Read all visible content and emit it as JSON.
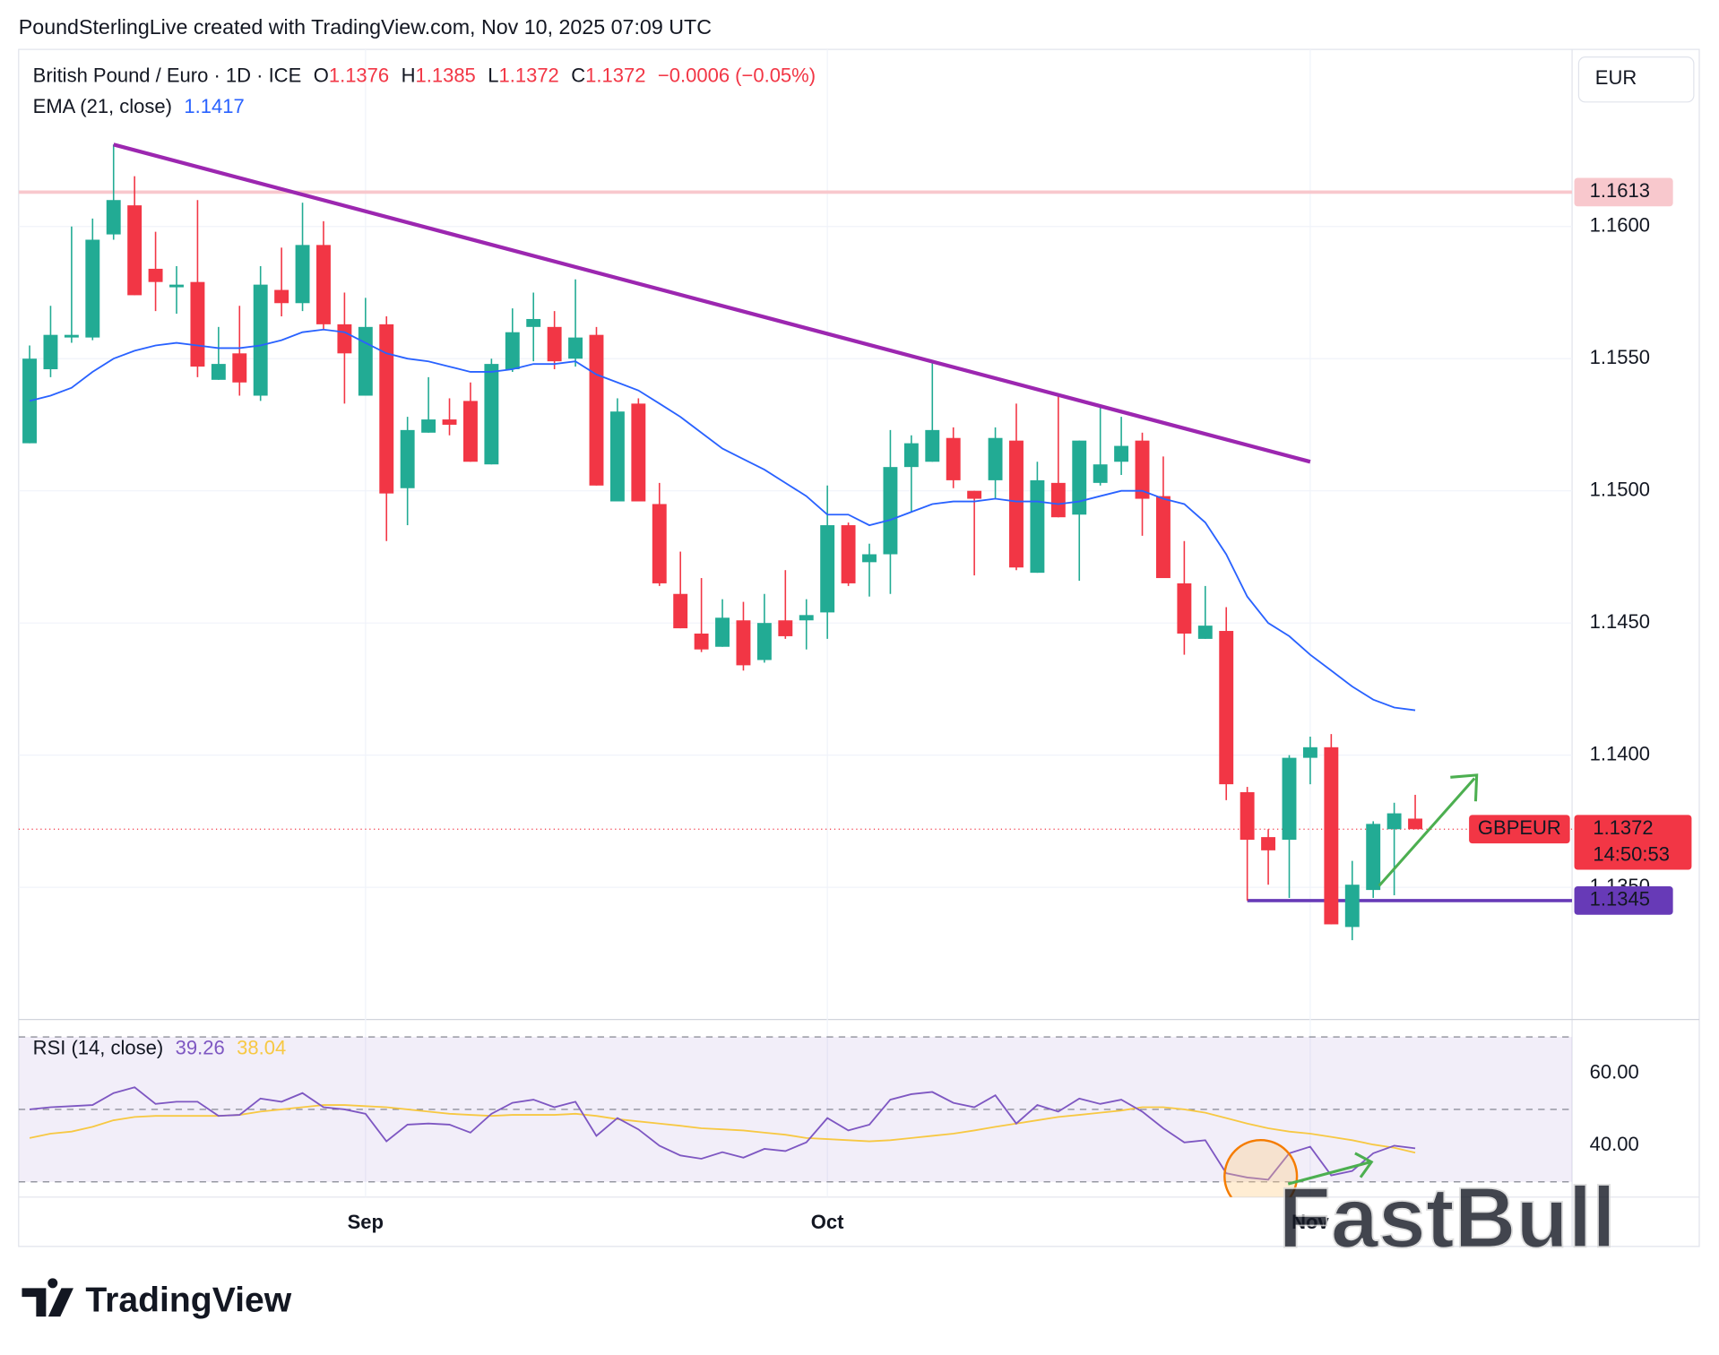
{
  "chart_data": {
    "type": "candlestick",
    "header": "PoundSterlingLive created with TradingView.com, Nov 10, 2025 07:09 UTC",
    "title": "British Pound / Euro · 1D · ICE",
    "legend": {
      "o_label": "O",
      "o": 1.1376,
      "h_label": "H",
      "h": 1.1385,
      "l_label": "L",
      "l": 1.1372,
      "c_label": "C",
      "c": 1.1372,
      "change": "−0.0006 (−0.05%)"
    },
    "currency": "EUR",
    "categories": [
      null,
      null,
      null,
      null,
      null,
      null,
      null,
      null,
      null,
      null,
      null,
      null,
      null,
      null,
      null,
      null,
      "Sep",
      null,
      null,
      null,
      null,
      null,
      null,
      null,
      null,
      null,
      null,
      null,
      null,
      null,
      null,
      null,
      null,
      null,
      null,
      null,
      null,
      null,
      "Oct",
      null,
      null,
      null,
      null,
      null,
      null,
      null,
      null,
      null,
      null,
      null,
      null,
      null,
      null,
      null,
      null,
      null,
      null,
      null,
      null,
      null,
      null,
      "Nov",
      null,
      null,
      null,
      null,
      null
    ],
    "series": [
      {
        "name": "GBPEUR",
        "up_color": "#22ab94",
        "down_color": "#f23645",
        "open": [
          1.1518,
          1.1546,
          1.1558,
          1.1558,
          1.1597,
          1.1608,
          1.1584,
          1.1577,
          1.1579,
          1.1542,
          1.1552,
          1.1536,
          1.1576,
          1.1571,
          1.1593,
          1.1563,
          1.1536,
          1.1563,
          1.1501,
          1.1522,
          1.1527,
          1.1534,
          1.151,
          1.1546,
          1.1562,
          1.1562,
          1.155,
          1.1559,
          1.1496,
          1.1533,
          1.1495,
          1.1461,
          1.1446,
          1.1441,
          1.1451,
          1.1436,
          1.1451,
          1.1451,
          1.1454,
          1.1487,
          1.1473,
          1.1476,
          1.1509,
          1.1511,
          1.152,
          1.15,
          1.1504,
          1.1519,
          1.1469,
          1.1503,
          1.1491,
          1.1503,
          1.1511,
          1.1519,
          1.1498,
          1.1465,
          1.1444,
          1.1447,
          1.1386,
          1.1369,
          1.1368,
          1.1399,
          1.1403,
          1.1335,
          1.1349,
          1.1372,
          1.1376
        ],
        "high": [
          1.1555,
          1.157,
          1.16,
          1.1603,
          1.1631,
          1.1619,
          1.1598,
          1.1585,
          1.161,
          1.1562,
          1.157,
          1.1585,
          1.1592,
          1.1609,
          1.1602,
          1.1575,
          1.1573,
          1.1566,
          1.1528,
          1.1543,
          1.1535,
          1.1541,
          1.155,
          1.1569,
          1.1575,
          1.1568,
          1.158,
          1.1562,
          1.1535,
          1.1535,
          1.1503,
          1.1477,
          1.1467,
          1.1459,
          1.1458,
          1.1461,
          1.147,
          1.1459,
          1.1502,
          1.1488,
          1.148,
          1.1523,
          1.1521,
          1.1549,
          1.1524,
          1.15,
          1.1524,
          1.1533,
          1.1511,
          1.1536,
          1.1519,
          1.1532,
          1.1528,
          1.1522,
          1.1513,
          1.1481,
          1.1464,
          1.1456,
          1.1388,
          1.1372,
          1.14,
          1.1407,
          1.1408,
          1.136,
          1.1375,
          1.1382,
          1.1385
        ],
        "low": [
          1.1518,
          1.1543,
          1.1556,
          1.1557,
          1.1595,
          1.1574,
          1.1568,
          1.1567,
          1.1543,
          1.1542,
          1.1536,
          1.1534,
          1.1566,
          1.1568,
          1.1561,
          1.1533,
          1.1536,
          1.1481,
          1.1487,
          1.1522,
          1.1521,
          1.1511,
          1.151,
          1.1545,
          1.1549,
          1.1546,
          1.1547,
          1.1502,
          1.1496,
          1.1496,
          1.1464,
          1.1448,
          1.1439,
          1.1441,
          1.1432,
          1.1435,
          1.1444,
          1.144,
          1.1444,
          1.1464,
          1.146,
          1.1461,
          1.1492,
          1.1511,
          1.1501,
          1.1468,
          1.1497,
          1.147,
          1.1469,
          1.149,
          1.1466,
          1.1502,
          1.1506,
          1.1483,
          1.1467,
          1.1438,
          1.1444,
          1.1383,
          1.1345,
          1.1351,
          1.1346,
          1.1389,
          1.1336,
          1.133,
          1.1346,
          1.1347,
          1.1372
        ],
        "close": [
          1.155,
          1.1559,
          1.1559,
          1.1595,
          1.161,
          1.1574,
          1.1579,
          1.1578,
          1.1547,
          1.1548,
          1.1541,
          1.1578,
          1.1571,
          1.1593,
          1.1563,
          1.1552,
          1.1562,
          1.1499,
          1.1523,
          1.1527,
          1.1525,
          1.1511,
          1.1548,
          1.156,
          1.1565,
          1.1549,
          1.1558,
          1.1502,
          1.153,
          1.1496,
          1.1465,
          1.1448,
          1.144,
          1.1452,
          1.1434,
          1.145,
          1.1445,
          1.1453,
          1.1487,
          1.1465,
          1.1476,
          1.1509,
          1.1518,
          1.1523,
          1.1504,
          1.1497,
          1.152,
          1.1471,
          1.1504,
          1.149,
          1.1519,
          1.151,
          1.1517,
          1.1497,
          1.1467,
          1.1446,
          1.1449,
          1.1389,
          1.1368,
          1.1364,
          1.1399,
          1.1403,
          1.1336,
          1.1351,
          1.1374,
          1.1378,
          1.1372
        ]
      }
    ],
    "ema": {
      "name": "EMA (21, close)",
      "value": 1.1417,
      "color": "#2962ff",
      "values": [
        1.1534,
        1.1536,
        1.1539,
        1.1545,
        1.155,
        1.1553,
        1.1555,
        1.1556,
        1.1555,
        1.1554,
        1.1554,
        1.1555,
        1.1557,
        1.156,
        1.1561,
        1.156,
        1.1556,
        1.1552,
        1.155,
        1.1549,
        1.1547,
        1.1545,
        1.1545,
        1.1546,
        1.1548,
        1.1548,
        1.1549,
        1.1544,
        1.1541,
        1.1538,
        1.1533,
        1.1528,
        1.1522,
        1.1516,
        1.1512,
        1.1508,
        1.1503,
        1.1498,
        1.1491,
        1.1491,
        1.1487,
        1.1489,
        1.1492,
        1.1495,
        1.1496,
        1.1496,
        1.1497,
        1.1496,
        1.1496,
        1.1495,
        1.1496,
        1.1498,
        1.15,
        1.15,
        1.1497,
        1.1495,
        1.1488,
        1.1476,
        1.146,
        1.145,
        1.1445,
        1.1438,
        1.1432,
        1.1426,
        1.1421,
        1.1418,
        1.1417
      ]
    },
    "ylim": [
      1.13,
      1.1667
    ],
    "yticks": [
      {
        "value": 1.135,
        "label": "1.1350"
      },
      {
        "value": 1.14,
        "label": "1.1400"
      },
      {
        "value": 1.145,
        "label": "1.1450"
      },
      {
        "value": 1.15,
        "label": "1.1500"
      },
      {
        "value": 1.155,
        "label": "1.1550"
      },
      {
        "value": 1.16,
        "label": "1.1600"
      }
    ],
    "grid": true,
    "hlines": [
      {
        "value": 1.1613,
        "color": "#f8c8cd",
        "text_color": "#131722"
      },
      {
        "value": 1.1345,
        "color": "#673ab7",
        "text_color": "#ffffff"
      }
    ],
    "trendline": {
      "color": "#9c27b0",
      "values": [
        1.1631,
        1.1511
      ]
    },
    "last_price": {
      "value": 1.1372,
      "countdown": "14:50:53",
      "color": "#f23645"
    },
    "rsi": {
      "name": "RSI (14, close)",
      "value": 39.26,
      "ma_value": 38.04,
      "color": "#7e57c2",
      "ma_color": "#f7c843",
      "values": [
        50.0,
        50.6,
        50.9,
        51.2,
        54.5,
        56.1,
        51.5,
        52.1,
        52.1,
        48.2,
        48.5,
        53.0,
        52.1,
        54.5,
        50.6,
        50.0,
        48.8,
        41.2,
        45.8,
        46.1,
        45.8,
        43.6,
        48.8,
        51.8,
        52.7,
        50.6,
        52.1,
        42.7,
        47.6,
        44.5,
        40.0,
        37.3,
        36.4,
        38.2,
        36.7,
        39.1,
        38.5,
        40.9,
        47.6,
        44.2,
        45.8,
        52.7,
        54.2,
        54.8,
        51.8,
        50.6,
        53.9,
        46.1,
        51.2,
        49.4,
        53.0,
        51.5,
        52.7,
        49.4,
        44.8,
        40.9,
        41.5,
        32.4,
        31.2,
        30.6,
        37.9,
        39.7,
        31.8,
        33.0,
        37.9,
        40.0,
        39.26
      ],
      "ma_values": [
        42.1,
        43.3,
        43.9,
        45.2,
        47.0,
        47.9,
        48.2,
        48.2,
        48.2,
        48.2,
        48.5,
        49.4,
        50.0,
        50.6,
        51.2,
        51.2,
        50.9,
        50.6,
        50.0,
        49.4,
        48.8,
        48.5,
        48.2,
        48.5,
        48.5,
        48.5,
        48.8,
        48.2,
        47.3,
        46.7,
        46.1,
        45.5,
        44.8,
        44.5,
        44.2,
        43.6,
        43.0,
        42.1,
        41.8,
        41.5,
        41.2,
        41.5,
        42.1,
        42.7,
        43.3,
        44.2,
        45.2,
        46.1,
        47.0,
        47.9,
        48.5,
        49.1,
        49.7,
        50.6,
        50.6,
        50.0,
        49.1,
        47.6,
        46.1,
        44.8,
        43.9,
        43.3,
        42.4,
        41.5,
        40.3,
        39.4,
        38.04
      ],
      "ylim": [
        25.8,
        74.8
      ],
      "yticks": [
        {
          "value": 40,
          "label": "40.00"
        },
        {
          "value": 60,
          "label": "60.00"
        }
      ],
      "levels": [
        30,
        50,
        70
      ]
    },
    "watermark": "FastBull",
    "logo": "TradingView"
  }
}
